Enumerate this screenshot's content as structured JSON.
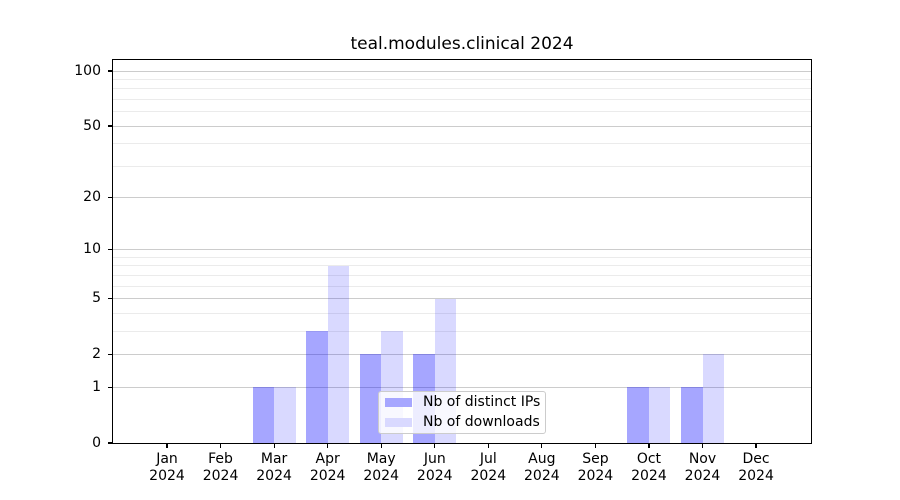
{
  "figure": {
    "background": "#ffffff"
  },
  "chart_data": {
    "type": "bar",
    "title": "teal.modules.clinical 2024",
    "x_unit": "month",
    "categories": [
      "Jan 2024",
      "Feb 2024",
      "Mar 2024",
      "Apr 2024",
      "May 2024",
      "Jun 2024",
      "Jul 2024",
      "Aug 2024",
      "Sep 2024",
      "Oct 2024",
      "Nov 2024",
      "Dec 2024"
    ],
    "x_tick_labels": [
      {
        "line1": "Jan",
        "line2": "2024"
      },
      {
        "line1": "Feb",
        "line2": "2024"
      },
      {
        "line1": "Mar",
        "line2": "2024"
      },
      {
        "line1": "Apr",
        "line2": "2024"
      },
      {
        "line1": "May",
        "line2": "2024"
      },
      {
        "line1": "Jun",
        "line2": "2024"
      },
      {
        "line1": "Jul",
        "line2": "2024"
      },
      {
        "line1": "Aug",
        "line2": "2024"
      },
      {
        "line1": "Sep",
        "line2": "2024"
      },
      {
        "line1": "Oct",
        "line2": "2024"
      },
      {
        "line1": "Nov",
        "line2": "2024"
      },
      {
        "line1": "Dec",
        "line2": "2024"
      }
    ],
    "series": [
      {
        "name": "Nb of distinct IPs",
        "color": "#a6a6ff",
        "fill": "rgba(0,0,255,0.35)",
        "values": [
          0,
          0,
          1,
          3,
          2,
          2,
          0,
          0,
          0,
          1,
          1,
          0
        ]
      },
      {
        "name": "Nb of downloads",
        "color": "#d9d9ff",
        "fill": "rgba(0,0,255,0.15)",
        "values": [
          0,
          0,
          1,
          8,
          3,
          5,
          0,
          0,
          0,
          1,
          2,
          0
        ]
      }
    ],
    "yscale": "log1p",
    "ylim": [
      0,
      115
    ],
    "y_major_ticks": [
      {
        "label": "0",
        "value": 0
      },
      {
        "label": "1",
        "value": 1
      },
      {
        "label": "2",
        "value": 2
      },
      {
        "label": "5",
        "value": 5
      },
      {
        "label": "10",
        "value": 10
      },
      {
        "label": "20",
        "value": 20
      },
      {
        "label": "50",
        "value": 50
      },
      {
        "label": "100",
        "value": 100
      }
    ],
    "y_minor_ticks": [
      3,
      4,
      6,
      7,
      8,
      9,
      30,
      40,
      60,
      70,
      80,
      90
    ],
    "grid": true,
    "legend_position": "lower center-right inside plot",
    "colors": {
      "grid_major": "#cccccc",
      "grid_minor": "#ebebeb",
      "spine": "#000000",
      "text": "#000000"
    }
  }
}
